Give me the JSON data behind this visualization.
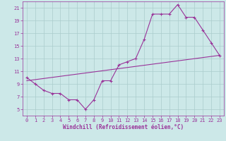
{
  "xlabel": "Windchill (Refroidissement éolien,°C)",
  "bg_color": "#cce8e8",
  "line_color": "#993399",
  "x_data": [
    0,
    1,
    2,
    3,
    4,
    5,
    6,
    7,
    8,
    9,
    10,
    11,
    12,
    13,
    14,
    15,
    16,
    17,
    18,
    19,
    20,
    21,
    22,
    23
  ],
  "y_data": [
    10.0,
    9.0,
    8.0,
    7.5,
    7.5,
    6.5,
    6.5,
    5.0,
    6.5,
    9.5,
    9.5,
    12.0,
    12.5,
    13.0,
    16.0,
    20.0,
    20.0,
    20.0,
    21.5,
    19.5,
    19.5,
    17.5,
    15.5,
    13.5
  ],
  "trend_x": [
    0,
    23
  ],
  "trend_y": [
    9.5,
    13.5
  ],
  "xlim": [
    -0.5,
    23.5
  ],
  "ylim": [
    4,
    22
  ],
  "yticks": [
    5,
    7,
    9,
    11,
    13,
    15,
    17,
    19,
    21
  ],
  "xticks": [
    0,
    1,
    2,
    3,
    4,
    5,
    6,
    7,
    8,
    9,
    10,
    11,
    12,
    13,
    14,
    15,
    16,
    17,
    18,
    19,
    20,
    21,
    22,
    23
  ],
  "grid_color": "#aacccc",
  "font_color": "#993399",
  "xlabel_fontsize": 5.5,
  "tick_fontsize": 5.0
}
